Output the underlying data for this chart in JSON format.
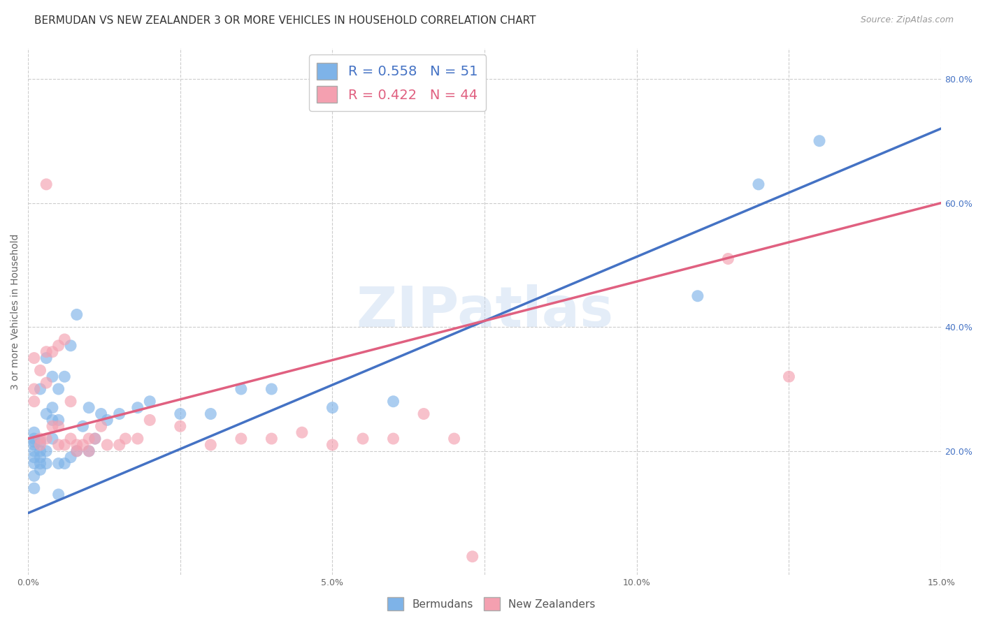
{
  "title": "BERMUDAN VS NEW ZEALANDER 3 OR MORE VEHICLES IN HOUSEHOLD CORRELATION CHART",
  "source": "Source: ZipAtlas.com",
  "ylabel": "3 or more Vehicles in Household",
  "watermark": "ZIPatlas",
  "xlim": [
    0.0,
    0.15
  ],
  "ylim": [
    0.0,
    0.85
  ],
  "xticks": [
    0.0,
    0.025,
    0.05,
    0.075,
    0.1,
    0.125,
    0.15
  ],
  "xticklabels": [
    "0.0%",
    "",
    "5.0%",
    "",
    "10.0%",
    "",
    "15.0%"
  ],
  "yticks_right": [
    0.2,
    0.4,
    0.6,
    0.8
  ],
  "yticklabels_right": [
    "20.0%",
    "40.0%",
    "60.0%",
    "80.0%"
  ],
  "grid_color": "#cccccc",
  "background_color": "#ffffff",
  "blue_color": "#7EB3E8",
  "pink_color": "#F4A0B0",
  "blue_line_color": "#4472C4",
  "pink_line_color": "#E06080",
  "R_blue": 0.558,
  "N_blue": 51,
  "R_pink": 0.422,
  "N_pink": 44,
  "legend_label_blue": "Bermudans",
  "legend_label_pink": "New Zealanders",
  "title_fontsize": 11,
  "source_fontsize": 9,
  "axis_label_fontsize": 10,
  "tick_fontsize": 9,
  "blue_line_x0": 0.0,
  "blue_line_y0": 0.1,
  "blue_line_x1": 0.15,
  "blue_line_y1": 0.72,
  "pink_line_x0": 0.0,
  "pink_line_y0": 0.22,
  "pink_line_x1": 0.15,
  "pink_line_y1": 0.6,
  "blue_scatter_x": [
    0.001,
    0.001,
    0.001,
    0.001,
    0.001,
    0.001,
    0.001,
    0.001,
    0.001,
    0.002,
    0.002,
    0.002,
    0.002,
    0.002,
    0.002,
    0.003,
    0.003,
    0.003,
    0.003,
    0.004,
    0.004,
    0.004,
    0.004,
    0.005,
    0.005,
    0.005,
    0.006,
    0.006,
    0.007,
    0.007,
    0.008,
    0.008,
    0.009,
    0.01,
    0.01,
    0.011,
    0.012,
    0.013,
    0.015,
    0.018,
    0.02,
    0.025,
    0.03,
    0.035,
    0.04,
    0.05,
    0.06,
    0.11,
    0.12,
    0.13,
    0.005
  ],
  "blue_scatter_y": [
    0.18,
    0.19,
    0.2,
    0.21,
    0.215,
    0.22,
    0.23,
    0.16,
    0.14,
    0.17,
    0.18,
    0.19,
    0.2,
    0.215,
    0.3,
    0.18,
    0.2,
    0.26,
    0.35,
    0.22,
    0.25,
    0.27,
    0.32,
    0.18,
    0.25,
    0.3,
    0.18,
    0.32,
    0.19,
    0.37,
    0.2,
    0.42,
    0.24,
    0.2,
    0.27,
    0.22,
    0.26,
    0.25,
    0.26,
    0.27,
    0.28,
    0.26,
    0.26,
    0.3,
    0.3,
    0.27,
    0.28,
    0.45,
    0.63,
    0.7,
    0.13
  ],
  "pink_scatter_x": [
    0.001,
    0.001,
    0.001,
    0.002,
    0.002,
    0.002,
    0.003,
    0.003,
    0.003,
    0.003,
    0.004,
    0.004,
    0.005,
    0.005,
    0.005,
    0.006,
    0.006,
    0.007,
    0.007,
    0.008,
    0.008,
    0.009,
    0.01,
    0.01,
    0.011,
    0.012,
    0.013,
    0.015,
    0.016,
    0.018,
    0.02,
    0.025,
    0.03,
    0.035,
    0.04,
    0.045,
    0.05,
    0.055,
    0.06,
    0.065,
    0.07,
    0.073,
    0.115,
    0.125
  ],
  "pink_scatter_y": [
    0.28,
    0.3,
    0.35,
    0.21,
    0.22,
    0.33,
    0.22,
    0.31,
    0.36,
    0.63,
    0.24,
    0.36,
    0.21,
    0.24,
    0.37,
    0.21,
    0.38,
    0.22,
    0.28,
    0.2,
    0.21,
    0.21,
    0.2,
    0.22,
    0.22,
    0.24,
    0.21,
    0.21,
    0.22,
    0.22,
    0.25,
    0.24,
    0.21,
    0.22,
    0.22,
    0.23,
    0.21,
    0.22,
    0.22,
    0.26,
    0.22,
    0.03,
    0.51,
    0.32
  ]
}
